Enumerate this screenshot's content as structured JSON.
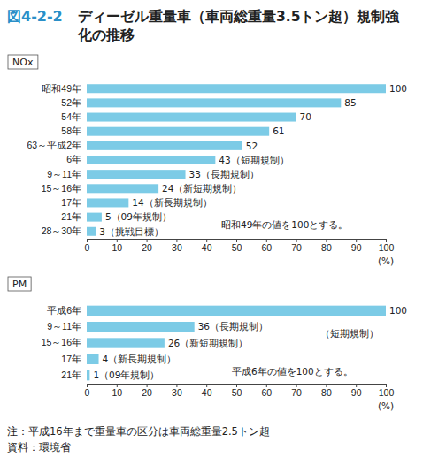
{
  "figure": {
    "number": "図4-2-2",
    "title": [
      "ディーゼル重量車（車両総重量3.5トン超）規制強",
      "化の推移"
    ],
    "note": "注：平成16年まで重量車の区分は車両総重量2.5トン超",
    "source": "資料：環境省"
  },
  "chart_data": [
    {
      "type": "bar",
      "orientation": "horizontal",
      "title": "NOx",
      "categories": [
        "昭和49年",
        "52年",
        "54年",
        "58年",
        "63～平成2年",
        "6年",
        "9～11年",
        "15～16年",
        "17年",
        "21年",
        "28～30年"
      ],
      "values": [
        100,
        85,
        70,
        61,
        52,
        43,
        33,
        24,
        14,
        5,
        3
      ],
      "value_labels": [
        "100",
        "85",
        "70",
        "61",
        "52",
        "43（短期規制）",
        "33（長期規制）",
        "24（新短期規制）",
        "14（新長期規制）",
        "5（09年規制）",
        "3（挑戦目標）"
      ],
      "data_labels": true,
      "color": "#7ccbe6",
      "xlim": [
        0,
        100
      ],
      "xticks": [
        0,
        10,
        20,
        30,
        40,
        50,
        60,
        70,
        80,
        90,
        100
      ],
      "x_label": "(%)",
      "grid": false,
      "annotations": [
        "昭和49年の値を100とする。"
      ]
    },
    {
      "type": "bar",
      "orientation": "horizontal",
      "title": "PM",
      "categories": [
        "平成6年",
        "9～11年",
        "15～16年",
        "17年",
        "21年"
      ],
      "values": [
        100,
        36,
        26,
        4,
        1
      ],
      "value_labels": [
        "100",
        "36（長期規制）",
        "26（新短期規制）",
        "4（新長期規制）",
        "1（09年規制）"
      ],
      "data_labels": true,
      "color": "#7ccbe6",
      "xlim": [
        0,
        100
      ],
      "xticks": [
        0,
        10,
        20,
        30,
        40,
        50,
        60,
        70,
        80,
        90,
        100
      ],
      "x_label": "(%)",
      "grid": false,
      "annotations": [
        "（短期規制）",
        "平成6年の値を100とする。"
      ]
    }
  ]
}
